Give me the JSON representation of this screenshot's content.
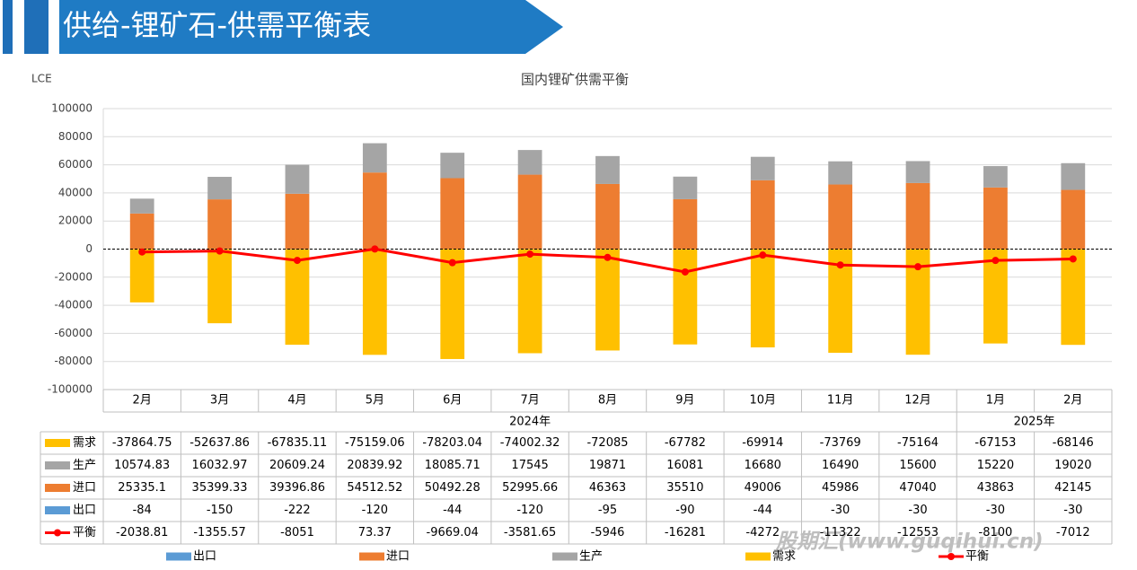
{
  "header": {
    "title": "供给-锂矿石-供需平衡表"
  },
  "watermark": "股期汇(www.guqihui.cn)",
  "chart_data": {
    "type": "bar",
    "title": "国内锂矿供需平衡",
    "y_label": "LCE",
    "categories": [
      {
        "group": "2024年",
        "label": "2月"
      },
      {
        "group": "2024年",
        "label": "3月"
      },
      {
        "group": "2024年",
        "label": "4月"
      },
      {
        "group": "2024年",
        "label": "5月"
      },
      {
        "group": "2024年",
        "label": "6月"
      },
      {
        "group": "2024年",
        "label": "7月"
      },
      {
        "group": "2024年",
        "label": "8月"
      },
      {
        "group": "2024年",
        "label": "9月"
      },
      {
        "group": "2024年",
        "label": "10月"
      },
      {
        "group": "2024年",
        "label": "11月"
      },
      {
        "group": "2024年",
        "label": "12月"
      },
      {
        "group": "2025年",
        "label": "1月"
      },
      {
        "group": "2025年",
        "label": "2月"
      }
    ],
    "series": [
      {
        "name": "出口",
        "color": "#5B9BD5",
        "values": [
          -84,
          -150,
          -222,
          -120,
          -44,
          -120,
          -95,
          -90,
          -44,
          -30,
          -30,
          -30,
          -30
        ]
      },
      {
        "name": "进口",
        "color": "#ED7D31",
        "values": [
          25335.1,
          35399.33,
          39396.86,
          54512.52,
          50492.28,
          52995.66,
          46363,
          35510,
          49006,
          45986,
          47040,
          43863,
          42145
        ]
      },
      {
        "name": "生产",
        "color": "#A5A5A5",
        "values": [
          10574.83,
          16032.97,
          20609.24,
          20839.92,
          18085.71,
          17545,
          19871,
          16081,
          16680,
          16490,
          15600,
          15220,
          19020
        ]
      },
      {
        "name": "需求",
        "color": "#FFC000",
        "values": [
          -37864.75,
          -52637.86,
          -67835.11,
          -75159.06,
          -78203.04,
          -74002.32,
          -72085,
          -67782,
          -69914,
          -73769,
          -75164,
          -67153,
          -68146
        ]
      },
      {
        "name": "平衡",
        "color": "#FF0000",
        "type": "line",
        "values": [
          -2038.81,
          -1355.57,
          -8051,
          73.37,
          -9669.04,
          -3581.65,
          -5946,
          -16281,
          -4272,
          -11322,
          -12553,
          -8100,
          -7012
        ]
      }
    ],
    "ylim": [
      -100000,
      100000
    ],
    "yticks": [
      -100000,
      -80000,
      -60000,
      -40000,
      -20000,
      0,
      20000,
      40000,
      60000,
      80000,
      100000
    ],
    "grid": true
  }
}
